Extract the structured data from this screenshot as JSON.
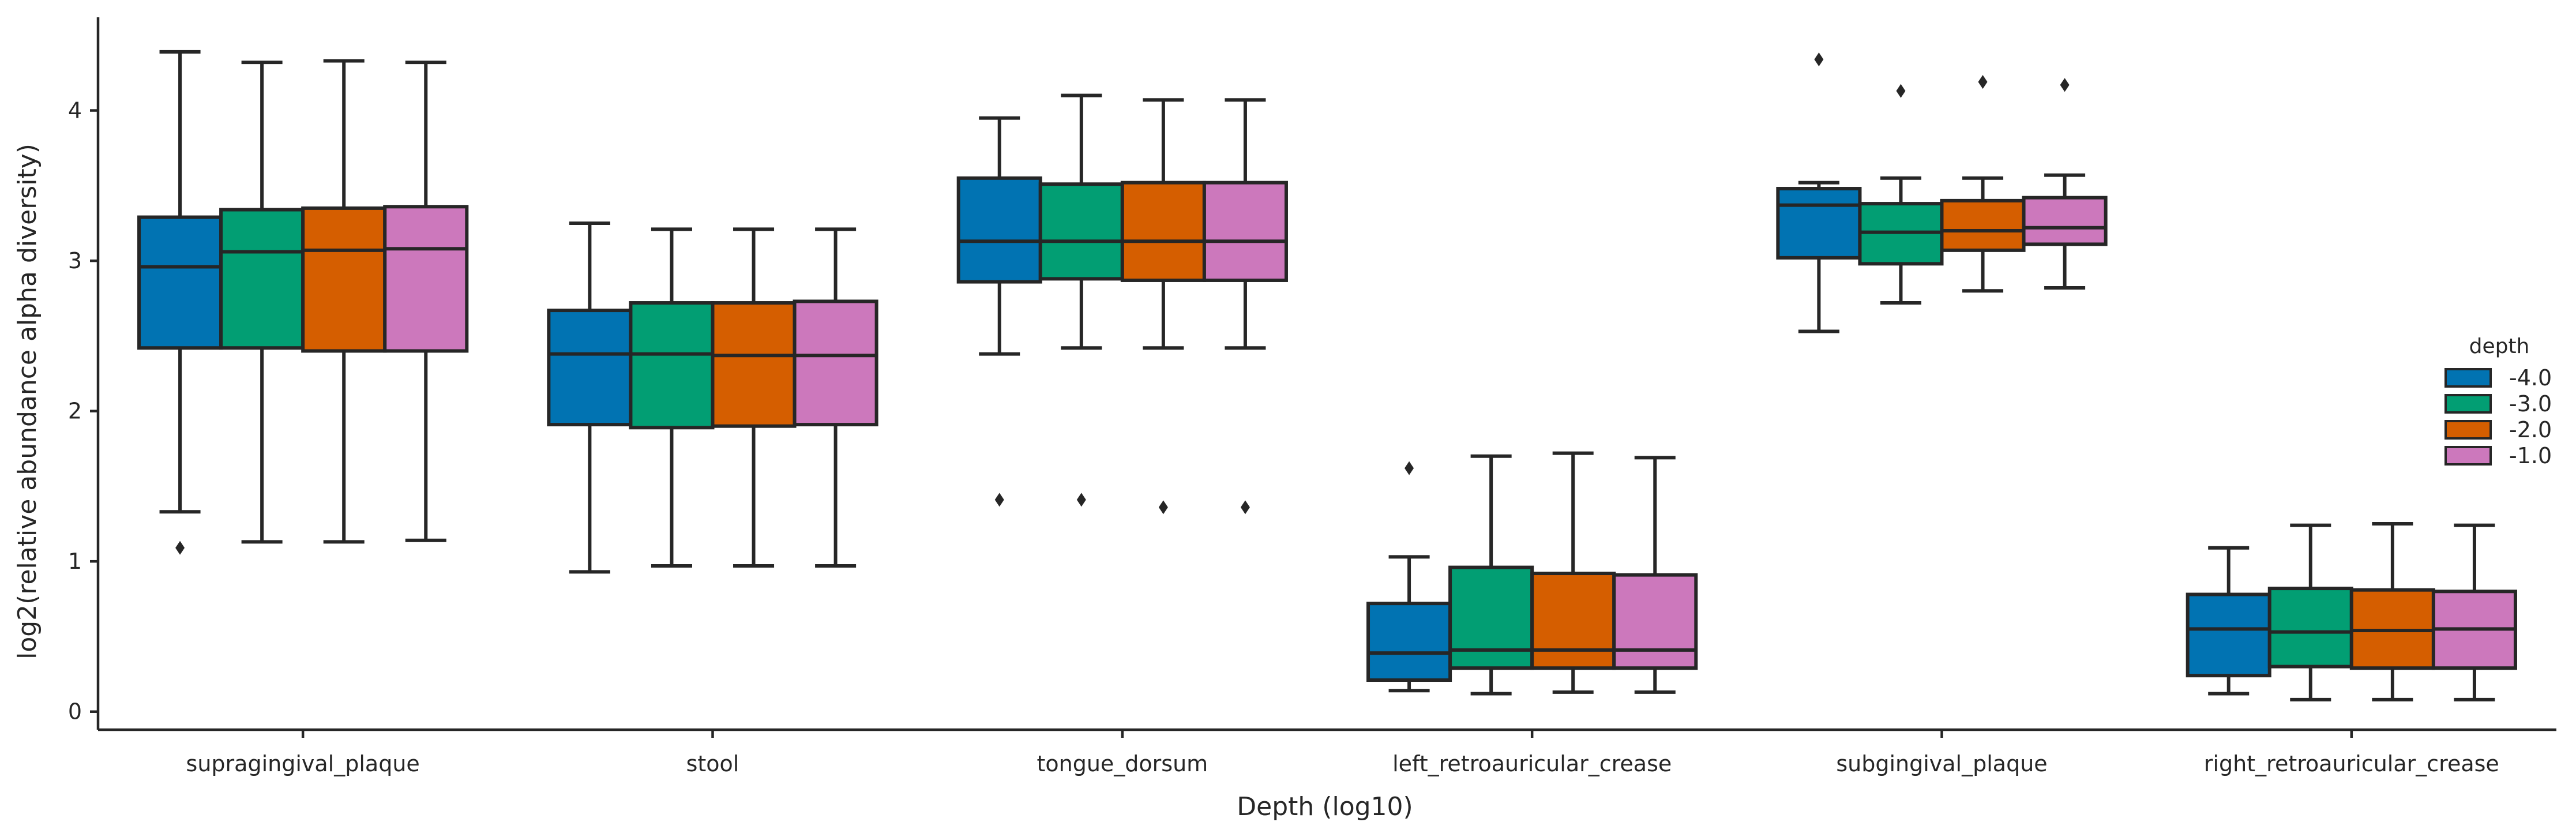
{
  "chart_data": {
    "type": "box",
    "xlabel": "Depth (log10)",
    "ylabel": "log2(relative abundance alpha diversity)",
    "ylim": [
      -0.12,
      4.62
    ],
    "yticks": [
      0,
      1,
      2,
      3,
      4
    ],
    "grid": false,
    "legend": {
      "title": "depth",
      "placement": "right"
    },
    "colors": [
      "#0173b2",
      "#029e73",
      "#d55e00",
      "#cc78bc"
    ],
    "categories": [
      "supragingival_plaque",
      "stool",
      "tongue_dorsum",
      "left_retroauricular_crease",
      "subgingival_plaque",
      "right_retroauricular_crease"
    ],
    "series": [
      {
        "name": "-4.0",
        "color": "#0173b2",
        "boxes": [
          {
            "whislo": 1.33,
            "q1": 2.42,
            "med": 2.96,
            "q3": 3.29,
            "whishi": 4.39,
            "fliers": [
              1.09
            ]
          },
          {
            "whislo": 0.93,
            "q1": 1.91,
            "med": 2.38,
            "q3": 2.67,
            "whishi": 3.25,
            "fliers": []
          },
          {
            "whislo": 2.38,
            "q1": 2.86,
            "med": 3.13,
            "q3": 3.55,
            "whishi": 3.95,
            "fliers": [
              1.41
            ]
          },
          {
            "whislo": 0.14,
            "q1": 0.21,
            "med": 0.39,
            "q3": 0.72,
            "whishi": 1.03,
            "fliers": [
              1.62
            ]
          },
          {
            "whislo": 2.53,
            "q1": 3.02,
            "med": 3.37,
            "q3": 3.48,
            "whishi": 3.52,
            "fliers": [
              4.34
            ]
          },
          {
            "whislo": 0.12,
            "q1": 0.24,
            "med": 0.55,
            "q3": 0.78,
            "whishi": 1.09,
            "fliers": []
          }
        ]
      },
      {
        "name": "-3.0",
        "color": "#029e73",
        "boxes": [
          {
            "whislo": 1.13,
            "q1": 2.42,
            "med": 3.06,
            "q3": 3.34,
            "whishi": 4.32,
            "fliers": []
          },
          {
            "whislo": 0.97,
            "q1": 1.89,
            "med": 2.38,
            "q3": 2.72,
            "whishi": 3.21,
            "fliers": []
          },
          {
            "whislo": 2.42,
            "q1": 2.88,
            "med": 3.13,
            "q3": 3.51,
            "whishi": 4.1,
            "fliers": [
              1.41
            ]
          },
          {
            "whislo": 0.12,
            "q1": 0.29,
            "med": 0.41,
            "q3": 0.96,
            "whishi": 1.7,
            "fliers": []
          },
          {
            "whislo": 2.72,
            "q1": 2.98,
            "med": 3.19,
            "q3": 3.38,
            "whishi": 3.55,
            "fliers": [
              4.13
            ]
          },
          {
            "whislo": 0.08,
            "q1": 0.3,
            "med": 0.53,
            "q3": 0.82,
            "whishi": 1.24,
            "fliers": []
          }
        ]
      },
      {
        "name": "-2.0",
        "color": "#d55e00",
        "boxes": [
          {
            "whislo": 1.13,
            "q1": 2.4,
            "med": 3.07,
            "q3": 3.35,
            "whishi": 4.33,
            "fliers": []
          },
          {
            "whislo": 0.97,
            "q1": 1.9,
            "med": 2.37,
            "q3": 2.72,
            "whishi": 3.21,
            "fliers": []
          },
          {
            "whislo": 2.42,
            "q1": 2.87,
            "med": 3.13,
            "q3": 3.52,
            "whishi": 4.07,
            "fliers": [
              1.36
            ]
          },
          {
            "whislo": 0.13,
            "q1": 0.29,
            "med": 0.41,
            "q3": 0.92,
            "whishi": 1.72,
            "fliers": []
          },
          {
            "whislo": 2.8,
            "q1": 3.07,
            "med": 3.2,
            "q3": 3.4,
            "whishi": 3.55,
            "fliers": [
              4.19
            ]
          },
          {
            "whislo": 0.08,
            "q1": 0.29,
            "med": 0.54,
            "q3": 0.81,
            "whishi": 1.25,
            "fliers": []
          }
        ]
      },
      {
        "name": "-1.0",
        "color": "#cc78bc",
        "boxes": [
          {
            "whislo": 1.14,
            "q1": 2.4,
            "med": 3.08,
            "q3": 3.36,
            "whishi": 4.32,
            "fliers": []
          },
          {
            "whislo": 0.97,
            "q1": 1.91,
            "med": 2.37,
            "q3": 2.73,
            "whishi": 3.21,
            "fliers": []
          },
          {
            "whislo": 2.42,
            "q1": 2.87,
            "med": 3.13,
            "q3": 3.52,
            "whishi": 4.07,
            "fliers": [
              1.36
            ]
          },
          {
            "whislo": 0.13,
            "q1": 0.29,
            "med": 0.41,
            "q3": 0.91,
            "whishi": 1.69,
            "fliers": []
          },
          {
            "whislo": 2.82,
            "q1": 3.11,
            "med": 3.22,
            "q3": 3.42,
            "whishi": 3.57,
            "fliers": [
              4.17
            ]
          },
          {
            "whislo": 0.08,
            "q1": 0.29,
            "med": 0.55,
            "q3": 0.8,
            "whishi": 1.24,
            "fliers": []
          }
        ]
      }
    ]
  }
}
